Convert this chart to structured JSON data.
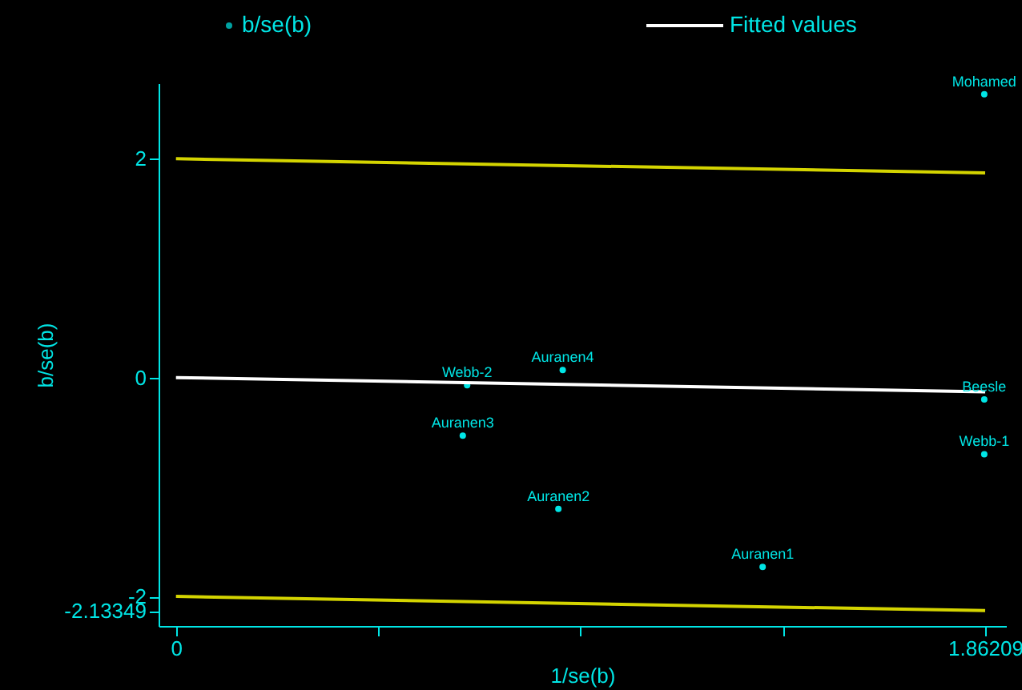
{
  "chart_data": {
    "type": "scatter",
    "xlabel": "1/se(b)",
    "ylabel": "b/se(b)",
    "xlim": [
      -0.04,
      1.91
    ],
    "ylim": [
      -2.27,
      2.69
    ],
    "xticks": [
      0,
      {
        "value": 0.4655,
        "label": null
      },
      {
        "value": 0.931,
        "label": null
      },
      {
        "value": 1.3966,
        "label": null
      },
      1.86209
    ],
    "yticks": [
      -2.13349,
      -2,
      0,
      2
    ],
    "series": [
      {
        "name": "b/se(b)",
        "color": "#00e5e5",
        "x": [
          1.86,
          0.67,
          0.89,
          1.86,
          0.66,
          1.86,
          0.88,
          1.35
        ],
        "values": [
          2.59,
          -0.07,
          0.07,
          -0.2,
          -0.53,
          -0.7,
          -1.2,
          -1.73
        ]
      },
      {
        "type": "line",
        "color": "#d4d400",
        "x": [
          0,
          1.86209
        ],
        "values": [
          2,
          1.87
        ]
      },
      {
        "name": "Fitted values",
        "type": "line",
        "color": "#ffffff",
        "x": [
          0,
          1.86209
        ],
        "values": [
          0,
          -0.13
        ]
      },
      {
        "type": "line",
        "color": "#d4d400",
        "x": [
          0,
          1.86209
        ],
        "values": [
          -2,
          -2.13
        ]
      }
    ],
    "annotations": [
      {
        "text": "Mohamed",
        "x": 1.86,
        "y": 2.59
      },
      {
        "text": "Webb-2",
        "x": 0.67,
        "y": -0.07
      },
      {
        "text": "Auranen4",
        "x": 0.89,
        "y": 0.07
      },
      {
        "text": "Beesle",
        "x": 1.86,
        "y": -0.2
      },
      {
        "text": "Auranen3",
        "x": 0.66,
        "y": -0.53
      },
      {
        "text": "Webb-1",
        "x": 1.86,
        "y": -0.7
      },
      {
        "text": "Auranen2",
        "x": 0.88,
        "y": -1.2
      },
      {
        "text": "Auranen1",
        "x": 1.35,
        "y": -1.73
      }
    ],
    "legend": "top",
    "grid": false
  }
}
